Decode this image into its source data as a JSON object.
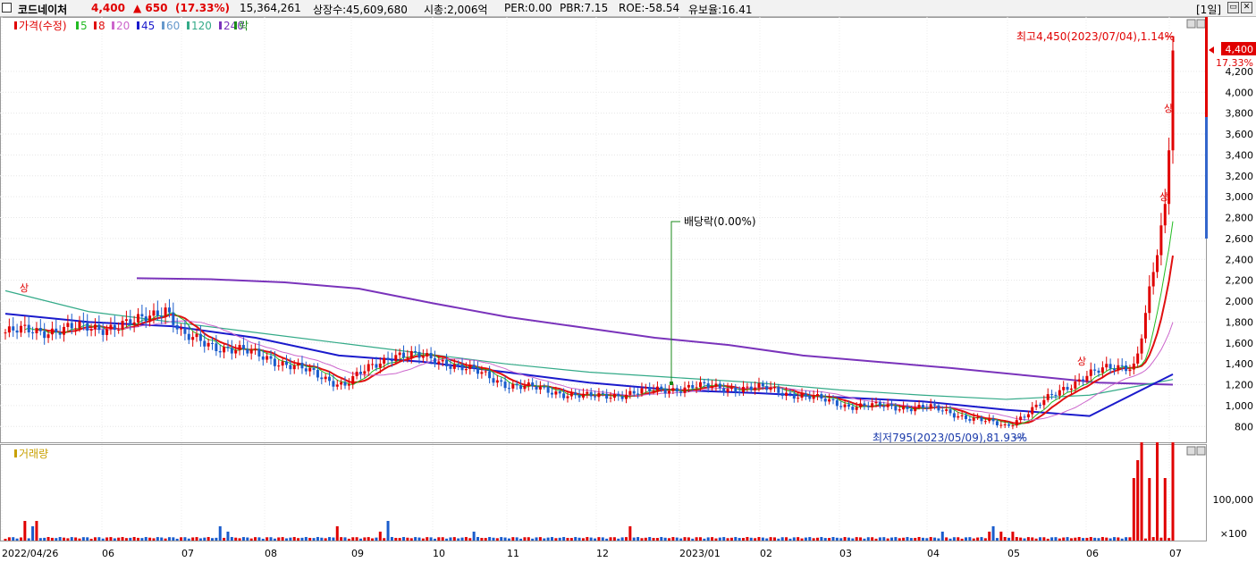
{
  "header": {
    "name": "코드네이처",
    "price": "4,400",
    "change": "▲ 650",
    "change_pct": "(17.33%)",
    "volume": "15,364,261",
    "listed": "상장수:45,609,680",
    "mcap": "시총:2,006억",
    "per": "PER:0.00",
    "pbr": "PBR:7.15",
    "roe": "ROE:-58.54",
    "float": "유보율:16.41",
    "period": "[1일]"
  },
  "legend": {
    "price": "가격(수정)",
    "ma": [
      {
        "label": "5",
        "color": "#22bb22"
      },
      {
        "label": "8",
        "color": "#e01010"
      },
      {
        "label": "20",
        "color": "#cc66cc"
      },
      {
        "label": "45",
        "color": "#1a1acc"
      },
      {
        "label": "60",
        "color": "#6699cc"
      },
      {
        "label": "120",
        "color": "#33aa88"
      },
      {
        "label": "240",
        "color": "#7a33bb"
      }
    ],
    "drop": "락",
    "volume": "거래량"
  },
  "annotations": {
    "high": "최고4,450(2023/07/04),1.14%",
    "low": "최저795(2023/05/09),81.93%",
    "dividend": "배당락(0.00%)",
    "limit_up": "상"
  },
  "current_price": {
    "value": 4400,
    "label": "4,400",
    "pct": "17.33%"
  },
  "chart_data": {
    "type": "candlestick",
    "price_axis": {
      "min": 700,
      "max": 4550,
      "ticks": [
        800,
        1000,
        1200,
        1400,
        1600,
        1800,
        2000,
        2200,
        2400,
        2600,
        2800,
        3000,
        3200,
        3400,
        3600,
        3800,
        4000,
        4200
      ]
    },
    "price_tick_labels": [
      "800",
      "1,000",
      "1,200",
      "1,400",
      "1,600",
      "1,800",
      "2,000",
      "2,200",
      "2,400",
      "2,600",
      "2,800",
      "3,000",
      "3,200",
      "3,400",
      "3,600",
      "3,800",
      "4,000",
      "4,200"
    ],
    "x_labels": [
      "2022/04/26",
      "06",
      "07",
      "08",
      "09",
      "10",
      "11",
      "12",
      "2023/01",
      "02",
      "03",
      "04",
      "05",
      "06",
      "07"
    ],
    "volume_axis": {
      "ticks": [
        "100,000",
        "×100"
      ]
    },
    "price_series": [
      {
        "date": "2022/04/26",
        "close": 1700
      },
      {
        "date": "2022/05",
        "close": 1750
      },
      {
        "date": "2022/06",
        "close": 1780
      },
      {
        "date": "2022/06/15",
        "close": 1950
      },
      {
        "date": "2022/07",
        "close": 1650
      },
      {
        "date": "2022/08",
        "close": 1460
      },
      {
        "date": "2022/09",
        "close": 1200
      },
      {
        "date": "2022/09/15",
        "close": 1500
      },
      {
        "date": "2022/10",
        "close": 1420
      },
      {
        "date": "2022/11",
        "close": 1200
      },
      {
        "date": "2022/12",
        "close": 1080
      },
      {
        "date": "2023/01",
        "close": 1180
      },
      {
        "date": "2023/02",
        "close": 1160
      },
      {
        "date": "2023/03",
        "close": 1000
      },
      {
        "date": "2023/04",
        "close": 980
      },
      {
        "date": "2023/05/09",
        "close": 800
      },
      {
        "date": "2023/06",
        "close": 1300
      },
      {
        "date": "2023/06/20",
        "close": 1400
      },
      {
        "date": "2023/07",
        "close": 2900
      },
      {
        "date": "2023/07/04",
        "close": 4400
      }
    ],
    "ma_series": [
      {
        "name": "240",
        "values": [
          2220,
          2210,
          2180,
          2120,
          1980,
          1850,
          1750,
          1650,
          1580,
          1480,
          1420,
          1360,
          1290,
          1220,
          1200
        ]
      },
      {
        "name": "120",
        "values": [
          2100,
          1900,
          1800,
          1700,
          1600,
          1500,
          1400,
          1320,
          1270,
          1220,
          1150,
          1100,
          1060,
          1100,
          1250
        ]
      },
      {
        "name": "45",
        "values": [
          1880,
          1800,
          1760,
          1650,
          1480,
          1420,
          1320,
          1220,
          1150,
          1120,
          1080,
          1040,
          960,
          900,
          1300
        ]
      }
    ]
  }
}
